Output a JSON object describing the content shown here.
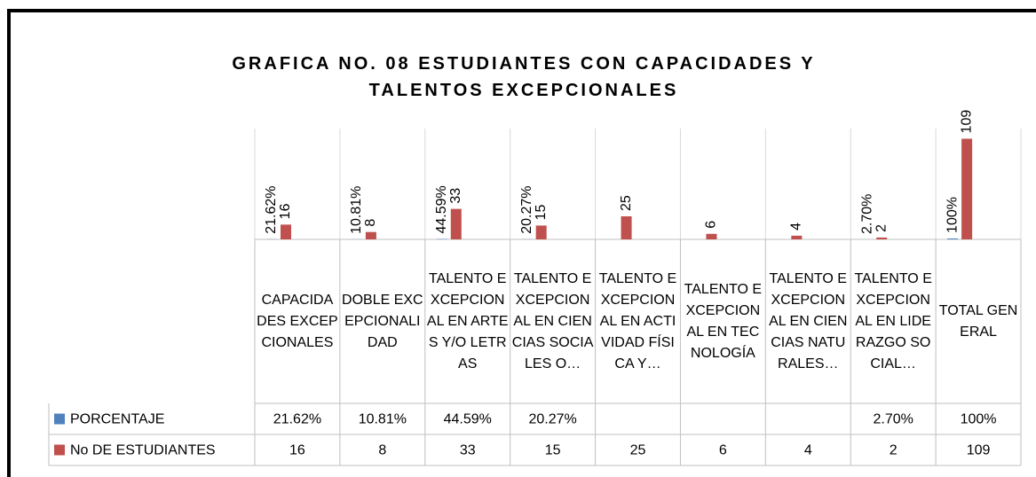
{
  "chart_data": {
    "type": "bar",
    "title": "GRAFICA NO. 08 ESTUDIANTES CON CAPACIDADES Y TALENTOS EXCEPCIONALES",
    "categories": [
      "CAPACIDADES EXCEPCIONALES",
      "DOBLE EXCEPCIONALIDAD",
      "TALENTO EXCEPCIONAL EN ARTES Y/O LETRAS",
      "TALENTO EXCEPCIONAL EN CIENCIAS SOCIALES O…",
      "TALENTO EXCEPCIONAL EN ACTIVIDAD FÍSICA Y…",
      "TALENTO EXCEPCIONAL EN TECNOLOGÍA",
      "TALENTO EXCEPCIONAL EN CIENCIAS NATURALES…",
      "TALENTO EXCEPCIONAL EN LIDERAZGO SOCIAL…",
      "TOTAL GENERAL"
    ],
    "series": [
      {
        "name": "PORCENTAJE",
        "color": "#4f81bd",
        "axis": "y2",
        "values": [
          21.62,
          10.81,
          44.59,
          20.27,
          null,
          null,
          null,
          2.7,
          100
        ],
        "value_labels": [
          "21.62%",
          "10.81%",
          "44.59%",
          "20.27%",
          null,
          null,
          null,
          "2.70%",
          "100%"
        ]
      },
      {
        "name": "No DE ESTUDIANTES",
        "color": "#c0504d",
        "values": [
          16,
          8,
          33,
          15,
          25,
          6,
          4,
          2,
          109
        ]
      }
    ],
    "ylim": [
      0,
      120
    ],
    "y2lim": [
      0,
      12000
    ],
    "grid": true,
    "data_table": true
  }
}
